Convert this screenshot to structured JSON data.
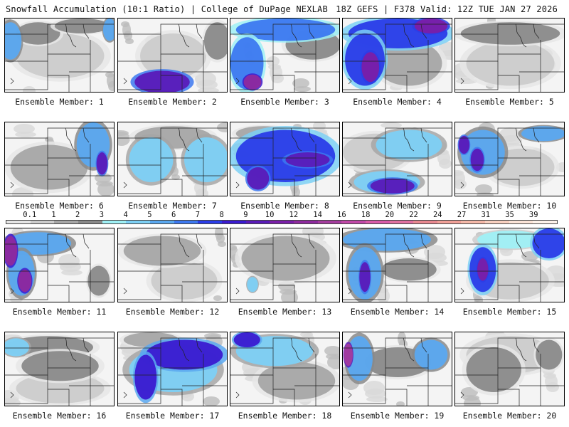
{
  "header": {
    "title_left": "Snowfall Accumulation (10:1 Ratio) | College of DuPage NEXLAB",
    "title_right": "18Z GEFS | F378 Valid: 12Z TUE JAN 27 2026"
  },
  "colorbar": {
    "labels": [
      "0.1",
      "1",
      "2",
      "3",
      "4",
      "5",
      "6",
      "7",
      "8",
      "9",
      "10",
      "12",
      "14",
      "16",
      "18",
      "20",
      "22",
      "24",
      "27",
      "31",
      "35",
      "39"
    ],
    "colors": [
      "#e6e6e6",
      "#cccccc",
      "#a6a6a6",
      "#8a8a8a",
      "#9ff0f5",
      "#7dd0f5",
      "#5aa8f0",
      "#3c78f0",
      "#2a3ce8",
      "#3a1ad0",
      "#5a1ab8",
      "#7a1ea8",
      "#8e2a9e",
      "#a43c9e",
      "#c048a8",
      "#d85aa8",
      "#e070a0",
      "#e88890",
      "#f0a098",
      "#f4b8a8",
      "#f8d0c0",
      "#fbe4d8",
      "#fdf2ea"
    ]
  },
  "members": [
    {
      "label": "Ensemble Member: 1",
      "snow": [
        {
          "lvl": 6,
          "blobs": [
            [
              0.05,
              0.3,
              0.1,
              0.25
            ],
            [
              0.95,
              0.15,
              0.06,
              0.15
            ]
          ]
        },
        {
          "lvl": 3,
          "blobs": [
            [
              0.3,
              0.2,
              0.2,
              0.15
            ],
            [
              0.7,
              0.1,
              0.25,
              0.1
            ]
          ]
        },
        {
          "lvl": 1,
          "blobs": [
            [
              0.5,
              0.5,
              0.4,
              0.3
            ]
          ]
        }
      ]
    },
    {
      "label": "Ensemble Member: 2",
      "snow": [
        {
          "lvl": 3,
          "blobs": [
            [
              0.9,
              0.3,
              0.12,
              0.25
            ]
          ]
        },
        {
          "lvl": 10,
          "blobs": [
            [
              0.4,
              0.85,
              0.25,
              0.15
            ]
          ]
        },
        {
          "lvl": 1,
          "blobs": [
            [
              0.5,
              0.5,
              0.3,
              0.3
            ]
          ]
        }
      ]
    },
    {
      "label": "Ensemble Member: 3",
      "snow": [
        {
          "lvl": 7,
          "blobs": [
            [
              0.5,
              0.15,
              0.45,
              0.15
            ],
            [
              0.15,
              0.6,
              0.15,
              0.35
            ]
          ]
        },
        {
          "lvl": 12,
          "blobs": [
            [
              0.2,
              0.85,
              0.08,
              0.1
            ]
          ]
        },
        {
          "lvl": 3,
          "blobs": [
            [
              0.75,
              0.35,
              0.25,
              0.2
            ]
          ]
        }
      ]
    },
    {
      "label": "Ensemble Member: 4",
      "snow": [
        {
          "lvl": 8,
          "blobs": [
            [
              0.5,
              0.2,
              0.45,
              0.2
            ],
            [
              0.2,
              0.55,
              0.18,
              0.35
            ]
          ]
        },
        {
          "lvl": 11,
          "blobs": [
            [
              0.8,
              0.1,
              0.15,
              0.1
            ],
            [
              0.25,
              0.65,
              0.08,
              0.2
            ]
          ]
        },
        {
          "lvl": 2,
          "blobs": [
            [
              0.6,
              0.6,
              0.3,
              0.3
            ]
          ]
        }
      ]
    },
    {
      "label": "Ensemble Member: 5",
      "snow": [
        {
          "lvl": 3,
          "blobs": [
            [
              0.5,
              0.2,
              0.45,
              0.15
            ]
          ]
        },
        {
          "lvl": 1,
          "blobs": [
            [
              0.5,
              0.6,
              0.4,
              0.3
            ]
          ]
        }
      ]
    },
    {
      "label": "Ensemble Member: 6",
      "snow": [
        {
          "lvl": 6,
          "blobs": [
            [
              0.8,
              0.3,
              0.15,
              0.3
            ]
          ]
        },
        {
          "lvl": 10,
          "blobs": [
            [
              0.88,
              0.55,
              0.05,
              0.15
            ]
          ]
        },
        {
          "lvl": 2,
          "blobs": [
            [
              0.4,
              0.6,
              0.35,
              0.3
            ]
          ]
        }
      ]
    },
    {
      "label": "Ensemble Member: 7",
      "snow": [
        {
          "lvl": 5,
          "blobs": [
            [
              0.3,
              0.5,
              0.2,
              0.3
            ],
            [
              0.8,
              0.5,
              0.2,
              0.3
            ]
          ]
        },
        {
          "lvl": 2,
          "blobs": [
            [
              0.5,
              0.2,
              0.35,
              0.15
            ]
          ]
        }
      ]
    },
    {
      "label": "Ensemble Member: 8",
      "snow": [
        {
          "lvl": 8,
          "blobs": [
            [
              0.5,
              0.45,
              0.45,
              0.35
            ]
          ]
        },
        {
          "lvl": 10,
          "blobs": [
            [
              0.7,
              0.5,
              0.2,
              0.1
            ],
            [
              0.25,
              0.75,
              0.1,
              0.15
            ]
          ]
        },
        {
          "lvl": 2,
          "blobs": [
            [
              0.3,
              0.15,
              0.25,
              0.1
            ]
          ]
        }
      ]
    },
    {
      "label": "Ensemble Member: 9",
      "snow": [
        {
          "lvl": 5,
          "blobs": [
            [
              0.6,
              0.3,
              0.3,
              0.2
            ],
            [
              0.4,
              0.8,
              0.3,
              0.15
            ]
          ]
        },
        {
          "lvl": 10,
          "blobs": [
            [
              0.45,
              0.85,
              0.2,
              0.1
            ]
          ]
        },
        {
          "lvl": 1,
          "blobs": [
            [
              0.3,
              0.4,
              0.3,
              0.25
            ]
          ]
        }
      ]
    },
    {
      "label": "Ensemble Member: 10",
      "snow": [
        {
          "lvl": 6,
          "blobs": [
            [
              0.25,
              0.4,
              0.2,
              0.3
            ],
            [
              0.8,
              0.15,
              0.2,
              0.1
            ]
          ]
        },
        {
          "lvl": 10,
          "blobs": [
            [
              0.2,
              0.5,
              0.06,
              0.15
            ],
            [
              0.08,
              0.3,
              0.05,
              0.12
            ]
          ]
        },
        {
          "lvl": 1,
          "blobs": [
            [
              0.6,
              0.6,
              0.3,
              0.25
            ]
          ]
        }
      ]
    },
    {
      "label": "Ensemble Member: 11",
      "snow": [
        {
          "lvl": 6,
          "blobs": [
            [
              0.3,
              0.2,
              0.3,
              0.15
            ],
            [
              0.15,
              0.6,
              0.12,
              0.3
            ]
          ]
        },
        {
          "lvl": 12,
          "blobs": [
            [
              0.05,
              0.3,
              0.06,
              0.2
            ],
            [
              0.18,
              0.7,
              0.06,
              0.15
            ]
          ]
        },
        {
          "lvl": 3,
          "blobs": [
            [
              0.85,
              0.7,
              0.1,
              0.2
            ]
          ]
        }
      ]
    },
    {
      "label": "Ensemble Member: 12",
      "snow": [
        {
          "lvl": 2,
          "blobs": [
            [
              0.4,
              0.3,
              0.35,
              0.2
            ]
          ]
        },
        {
          "lvl": 1,
          "blobs": [
            [
              0.6,
              0.7,
              0.3,
              0.25
            ]
          ]
        }
      ]
    },
    {
      "label": "Ensemble Member: 13",
      "snow": [
        {
          "lvl": 5,
          "blobs": [
            [
              0.2,
              0.75,
              0.05,
              0.1
            ]
          ]
        },
        {
          "lvl": 2,
          "blobs": [
            [
              0.5,
              0.4,
              0.4,
              0.3
            ]
          ]
        }
      ]
    },
    {
      "label": "Ensemble Member: 14",
      "snow": [
        {
          "lvl": 6,
          "blobs": [
            [
              0.4,
              0.15,
              0.4,
              0.15
            ],
            [
              0.2,
              0.6,
              0.15,
              0.35
            ]
          ]
        },
        {
          "lvl": 10,
          "blobs": [
            [
              0.2,
              0.65,
              0.05,
              0.2
            ]
          ]
        },
        {
          "lvl": 3,
          "blobs": [
            [
              0.6,
              0.55,
              0.25,
              0.15
            ]
          ]
        }
      ]
    },
    {
      "label": "Ensemble Member: 15",
      "snow": [
        {
          "lvl": 8,
          "blobs": [
            [
              0.85,
              0.2,
              0.15,
              0.2
            ],
            [
              0.25,
              0.55,
              0.12,
              0.3
            ]
          ]
        },
        {
          "lvl": 11,
          "blobs": [
            [
              0.25,
              0.55,
              0.05,
              0.15
            ]
          ]
        },
        {
          "lvl": 4,
          "blobs": [
            [
              0.5,
              0.15,
              0.3,
              0.12
            ]
          ]
        },
        {
          "lvl": 1,
          "blobs": [
            [
              0.5,
              0.7,
              0.35,
              0.25
            ]
          ]
        }
      ]
    },
    {
      "label": "Ensemble Member: 16",
      "snow": [
        {
          "lvl": 5,
          "blobs": [
            [
              0.1,
              0.2,
              0.12,
              0.12
            ]
          ]
        },
        {
          "lvl": 3,
          "blobs": [
            [
              0.4,
              0.2,
              0.4,
              0.15
            ],
            [
              0.5,
              0.45,
              0.35,
              0.2
            ]
          ]
        },
        {
          "lvl": 1,
          "blobs": [
            [
              0.5,
              0.75,
              0.4,
              0.2
            ]
          ]
        }
      ]
    },
    {
      "label": "Ensemble Member: 17",
      "snow": [
        {
          "lvl": 9,
          "blobs": [
            [
              0.6,
              0.3,
              0.35,
              0.2
            ],
            [
              0.25,
              0.6,
              0.1,
              0.3
            ]
          ]
        },
        {
          "lvl": 5,
          "blobs": [
            [
              0.5,
              0.5,
              0.4,
              0.3
            ]
          ]
        },
        {
          "lvl": 2,
          "blobs": [
            [
              0.3,
              0.1,
              0.25,
              0.1
            ]
          ]
        }
      ]
    },
    {
      "label": "Ensemble Member: 18",
      "snow": [
        {
          "lvl": 5,
          "blobs": [
            [
              0.4,
              0.25,
              0.35,
              0.2
            ]
          ]
        },
        {
          "lvl": 9,
          "blobs": [
            [
              0.15,
              0.1,
              0.12,
              0.1
            ]
          ]
        },
        {
          "lvl": 2,
          "blobs": [
            [
              0.6,
              0.65,
              0.35,
              0.25
            ]
          ]
        }
      ]
    },
    {
      "label": "Ensemble Member: 19",
      "snow": [
        {
          "lvl": 6,
          "blobs": [
            [
              0.15,
              0.35,
              0.12,
              0.3
            ],
            [
              0.8,
              0.3,
              0.15,
              0.2
            ]
          ]
        },
        {
          "lvl": 13,
          "blobs": [
            [
              0.05,
              0.3,
              0.04,
              0.15
            ]
          ]
        },
        {
          "lvl": 3,
          "blobs": [
            [
              0.5,
              0.4,
              0.3,
              0.2
            ]
          ]
        }
      ]
    },
    {
      "label": "Ensemble Member: 20",
      "snow": [
        {
          "lvl": 3,
          "blobs": [
            [
              0.35,
              0.5,
              0.25,
              0.3
            ],
            [
              0.85,
              0.3,
              0.12,
              0.2
            ]
          ]
        },
        {
          "lvl": 1,
          "blobs": [
            [
              0.5,
              0.3,
              0.4,
              0.25
            ]
          ]
        }
      ]
    }
  ]
}
